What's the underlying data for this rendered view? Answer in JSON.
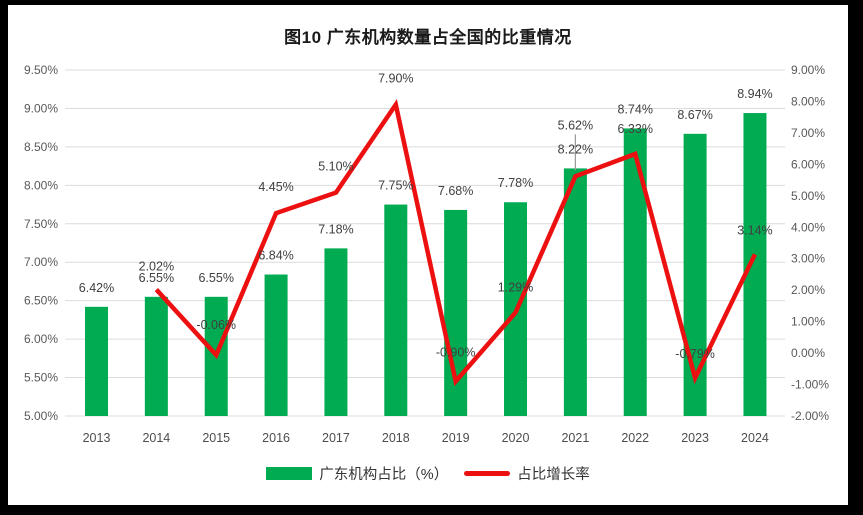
{
  "title": "图10  广东机构数量占全国的比重情况",
  "colors": {
    "bar_green": "#00AB52",
    "line_red": "#EC1010",
    "gridline": "#DCDCDC",
    "axis_text": "#595959",
    "data_label_text": "#404040",
    "title_text": "#1a1a1a",
    "callout_line": "#999999",
    "frame_border": "#000000",
    "background": "#ffffff"
  },
  "chart_data": {
    "type": "combo-bar-line",
    "title": "图10  广东机构数量占全国的比重情况",
    "categories": [
      "2013",
      "2014",
      "2015",
      "2016",
      "2017",
      "2018",
      "2019",
      "2020",
      "2021",
      "2022",
      "2023",
      "2024"
    ],
    "grid": true,
    "legend_position": "bottom",
    "left_axis": {
      "min": 5.0,
      "max": 9.5,
      "step": 0.5,
      "ticks": [
        "9.50%",
        "9.00%",
        "8.50%",
        "8.00%",
        "7.50%",
        "7.00%",
        "6.50%",
        "6.00%",
        "5.50%",
        "5.00%"
      ]
    },
    "right_axis": {
      "min": -2.0,
      "max": 9.0,
      "step": 1.0,
      "ticks": [
        "9.00%",
        "8.00%",
        "7.00%",
        "6.00%",
        "5.00%",
        "4.00%",
        "3.00%",
        "2.00%",
        "1.00%",
        "0.00%",
        "-1.00%",
        "-2.00%"
      ]
    },
    "series": [
      {
        "name": "广东机构占比（%）",
        "type": "bar",
        "axis": "left",
        "color": "#00AB52",
        "values": [
          6.42,
          6.55,
          6.55,
          6.84,
          7.18,
          7.75,
          7.68,
          7.78,
          8.22,
          8.74,
          8.67,
          8.94
        ],
        "labels": [
          "6.42%",
          "6.55%",
          "6.55%",
          "6.84%",
          "7.18%",
          "7.75%",
          "7.68%",
          "7.78%",
          "8.22%",
          "8.74%",
          "8.67%",
          "8.94%"
        ]
      },
      {
        "name": "占比增长率",
        "type": "line",
        "axis": "right",
        "color": "#EC1010",
        "x_start_index": 1,
        "values": [
          2.02,
          -0.06,
          4.45,
          5.1,
          7.9,
          -0.9,
          1.29,
          5.62,
          6.33,
          -0.79,
          3.14
        ],
        "labels": [
          "2.02%",
          "-0.06%",
          "4.45%",
          "5.10%",
          "7.90%",
          "-0.90%",
          "1.29%",
          "5.62%",
          "6.33%",
          "-0.79%",
          "3.14%"
        ],
        "label_dy": [
          -19,
          -26,
          -22,
          -22,
          -22,
          -25,
          -21,
          -47,
          -21,
          -20,
          -20
        ],
        "callout_index": 7
      }
    ]
  }
}
